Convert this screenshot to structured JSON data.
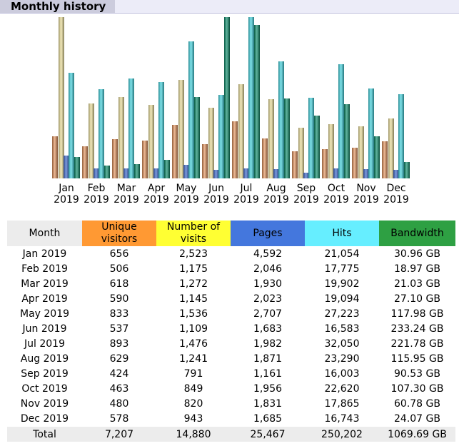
{
  "header": {
    "title": "Monthly history"
  },
  "colors": {
    "unique_visitors": "#e3925a",
    "visits": "#efe19a",
    "pages": "#3a67d0",
    "hits": "#3fd6e2",
    "bandwidth": "#0a8c6a"
  },
  "chart_data": {
    "type": "bar",
    "categories": [
      "Jan 2019",
      "Feb 2019",
      "Mar 2019",
      "Apr 2019",
      "May 2019",
      "Jun 2019",
      "Jul 2019",
      "Aug 2019",
      "Sep 2019",
      "Oct 2019",
      "Nov 2019",
      "Dec 2019"
    ],
    "axis_labels": [
      [
        "Jan",
        "2019"
      ],
      [
        "Feb",
        "2019"
      ],
      [
        "Mar",
        "2019"
      ],
      [
        "Apr",
        "2019"
      ],
      [
        "May",
        "2019"
      ],
      [
        "Jun",
        "2019"
      ],
      [
        "Jul",
        "2019"
      ],
      [
        "Aug",
        "2019"
      ],
      [
        "Sep",
        "2019"
      ],
      [
        "Oct",
        "2019"
      ],
      [
        "Nov",
        "2019"
      ],
      [
        "Dec",
        "2019"
      ]
    ],
    "series": [
      {
        "key": "unique_visitors",
        "values": [
          656,
          506,
          618,
          590,
          833,
          537,
          893,
          629,
          424,
          463,
          480,
          578
        ]
      },
      {
        "key": "visits",
        "values": [
          2523,
          1175,
          1272,
          1145,
          1536,
          1109,
          1476,
          1241,
          791,
          849,
          820,
          943
        ]
      },
      {
        "key": "pages",
        "values": [
          4592,
          2046,
          1930,
          2023,
          2707,
          1683,
          1982,
          1871,
          1161,
          1956,
          1831,
          1685
        ]
      },
      {
        "key": "hits",
        "values": [
          21054,
          17775,
          19902,
          19094,
          27223,
          16583,
          32050,
          23290,
          16003,
          22620,
          17865,
          16743
        ]
      },
      {
        "key": "bandwidth_gb",
        "values": [
          30.96,
          18.97,
          21.03,
          27.1,
          117.98,
          233.24,
          221.78,
          115.95,
          90.53,
          107.3,
          60.78,
          24.07
        ]
      }
    ],
    "scale_groups": [
      [
        "unique_visitors",
        "visits"
      ],
      [
        "pages",
        "hits"
      ],
      [
        "bandwidth_gb"
      ]
    ],
    "grid": false,
    "legend": "none"
  },
  "table": {
    "headers": {
      "month": "Month",
      "unique_visitors": "Unique visitors",
      "visits": "Number of visits",
      "pages": "Pages",
      "hits": "Hits",
      "bandwidth": "Bandwidth"
    },
    "rows": [
      [
        "Jan 2019",
        "656",
        "2,523",
        "4,592",
        "21,054",
        "30.96 GB"
      ],
      [
        "Feb 2019",
        "506",
        "1,175",
        "2,046",
        "17,775",
        "18.97 GB"
      ],
      [
        "Mar 2019",
        "618",
        "1,272",
        "1,930",
        "19,902",
        "21.03 GB"
      ],
      [
        "Apr 2019",
        "590",
        "1,145",
        "2,023",
        "19,094",
        "27.10 GB"
      ],
      [
        "May 2019",
        "833",
        "1,536",
        "2,707",
        "27,223",
        "117.98 GB"
      ],
      [
        "Jun 2019",
        "537",
        "1,109",
        "1,683",
        "16,583",
        "233.24 GB"
      ],
      [
        "Jul 2019",
        "893",
        "1,476",
        "1,982",
        "32,050",
        "221.78 GB"
      ],
      [
        "Aug 2019",
        "629",
        "1,241",
        "1,871",
        "23,290",
        "115.95 GB"
      ],
      [
        "Sep 2019",
        "424",
        "791",
        "1,161",
        "16,003",
        "90.53 GB"
      ],
      [
        "Oct 2019",
        "463",
        "849",
        "1,956",
        "22,620",
        "107.30 GB"
      ],
      [
        "Nov 2019",
        "480",
        "820",
        "1,831",
        "17,865",
        "60.78 GB"
      ],
      [
        "Dec 2019",
        "578",
        "943",
        "1,685",
        "16,743",
        "24.07 GB"
      ]
    ],
    "total": [
      "Total",
      "7,207",
      "14,880",
      "25,467",
      "250,202",
      "1069.69 GB"
    ]
  }
}
